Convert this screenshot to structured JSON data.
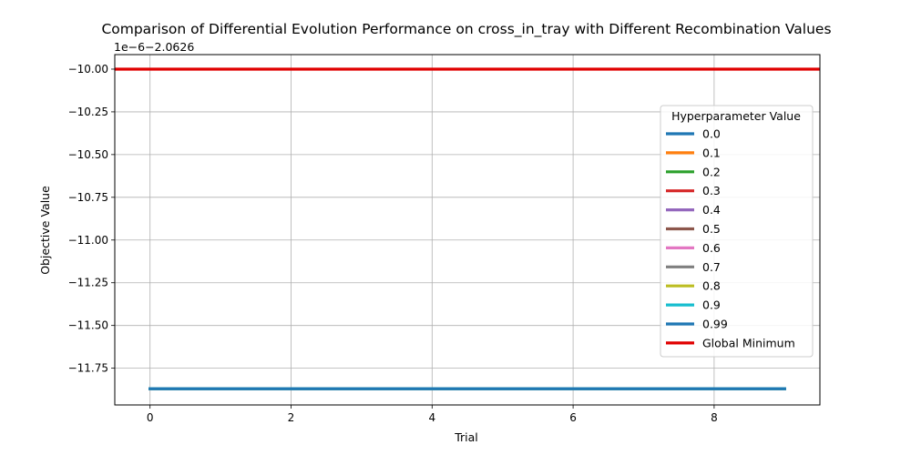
{
  "chart_data": {
    "type": "line",
    "title": "Comparison of Differential Evolution Performance on cross_in_tray with Different Recombination Values",
    "xlabel": "Trial",
    "ylabel": "Objective Value",
    "y_offset_label": "1e−6−2.0626",
    "xlim": [
      -0.5,
      9.5
    ],
    "ylim": [
      -11.965,
      -9.915
    ],
    "x_ticks": [
      0,
      2,
      4,
      6,
      8
    ],
    "y_ticks": [
      -10.0,
      -10.25,
      -10.5,
      -10.75,
      -11.0,
      -11.25,
      -11.5,
      -11.75
    ],
    "y_tick_labels": [
      "−10.00",
      "−10.25",
      "−10.50",
      "−10.75",
      "−11.00",
      "−11.25",
      "−11.50",
      "−11.75"
    ],
    "grid": true,
    "legend": {
      "title": "Hyperparameter Value",
      "placement": "center-right"
    },
    "x": [
      0,
      1,
      2,
      3,
      4,
      5,
      6,
      7,
      8,
      9
    ],
    "series": [
      {
        "name": "0.0",
        "color": "#1f77b4",
        "values": [
          -11.87,
          -11.87,
          -11.87,
          -11.87,
          -11.87,
          -11.87,
          -11.87,
          -11.87,
          -11.87,
          -11.87
        ]
      },
      {
        "name": "0.1",
        "color": "#ff7f0e",
        "values": [
          -11.87,
          -11.87,
          -11.87,
          -11.87,
          -11.87,
          -11.87,
          -11.87,
          -11.87,
          -11.87,
          -11.87
        ]
      },
      {
        "name": "0.2",
        "color": "#2ca02c",
        "values": [
          -11.87,
          -11.87,
          -11.87,
          -11.87,
          -11.87,
          -11.87,
          -11.87,
          -11.87,
          -11.87,
          -11.87
        ]
      },
      {
        "name": "0.3",
        "color": "#d62728",
        "values": [
          -11.87,
          -11.87,
          -11.87,
          -11.87,
          -11.87,
          -11.87,
          -11.87,
          -11.87,
          -11.87,
          -11.87
        ]
      },
      {
        "name": "0.4",
        "color": "#9467bd",
        "values": [
          -11.87,
          -11.87,
          -11.87,
          -11.87,
          -11.87,
          -11.87,
          -11.87,
          -11.87,
          -11.87,
          -11.87
        ]
      },
      {
        "name": "0.5",
        "color": "#8c564b",
        "values": [
          -11.87,
          -11.87,
          -11.87,
          -11.87,
          -11.87,
          -11.87,
          -11.87,
          -11.87,
          -11.87,
          -11.87
        ]
      },
      {
        "name": "0.6",
        "color": "#e377c2",
        "values": [
          -11.87,
          -11.87,
          -11.87,
          -11.87,
          -11.87,
          -11.87,
          -11.87,
          -11.87,
          -11.87,
          -11.87
        ]
      },
      {
        "name": "0.7",
        "color": "#7f7f7f",
        "values": [
          -11.87,
          -11.87,
          -11.87,
          -11.87,
          -11.87,
          -11.87,
          -11.87,
          -11.87,
          -11.87,
          -11.87
        ]
      },
      {
        "name": "0.8",
        "color": "#bcbd22",
        "values": [
          -11.87,
          -11.87,
          -11.87,
          -11.87,
          -11.87,
          -11.87,
          -11.87,
          -11.87,
          -11.87,
          -11.87
        ]
      },
      {
        "name": "0.9",
        "color": "#17becf",
        "values": [
          -11.87,
          -11.87,
          -11.87,
          -11.87,
          -11.87,
          -11.87,
          -11.87,
          -11.87,
          -11.87,
          -11.87
        ]
      },
      {
        "name": "0.99",
        "color": "#1f77b4",
        "values": [
          -11.87,
          -11.87,
          -11.87,
          -11.87,
          -11.87,
          -11.87,
          -11.87,
          -11.87,
          -11.87,
          -11.87
        ]
      }
    ],
    "reference_line": {
      "name": "Global Minimum",
      "color": "#e00000",
      "value": -10.0
    }
  }
}
